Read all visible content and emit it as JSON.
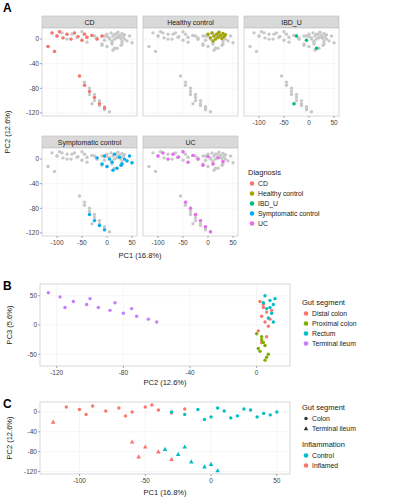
{
  "chart_data": [
    {
      "type": "facet_scatter",
      "label": "A",
      "x_label": "PC1 (16.8%)",
      "y_label": "PC2 (12.6%)",
      "legend_title": "Diagnosis",
      "legend": "right",
      "grid": true,
      "xlim": [
        -130,
        60
      ],
      "ylim": [
        -125,
        18
      ],
      "xticks": [
        -100,
        -50,
        0,
        50
      ],
      "yticks": [
        -120,
        -80,
        -40,
        0
      ],
      "series": [
        {
          "name": "CD",
          "color": "#f8766d",
          "marker": "circle",
          "x": [
            -110,
            -100,
            -95,
            -88,
            -80,
            -72,
            -65,
            -58,
            -50,
            -45,
            -40,
            -30,
            -20,
            -10,
            -118,
            -105,
            -55,
            -45,
            -35,
            -25,
            -15,
            -5
          ],
          "y": [
            10,
            5,
            12,
            2,
            8,
            0,
            10,
            4,
            -2,
            8,
            3,
            6,
            0,
            5,
            -12,
            -20,
            -60,
            -75,
            -85,
            -95,
            -105,
            -112
          ]
        },
        {
          "name": "Healthy control",
          "color": "#a3a500",
          "marker": "circle",
          "x": [
            0,
            5,
            8,
            12,
            15,
            18,
            20,
            22,
            25,
            28,
            30,
            32,
            35,
            10
          ],
          "y": [
            8,
            2,
            10,
            5,
            0,
            8,
            3,
            11,
            6,
            1,
            9,
            4,
            7,
            -3
          ]
        },
        {
          "name": "IBD_U",
          "color": "#00bf7d",
          "marker": "circle",
          "x": [
            -25,
            -5,
            15,
            -30
          ],
          "y": [
            5,
            -2,
            -15,
            -105
          ]
        },
        {
          "name": "Symptomatic control",
          "color": "#00b0f6",
          "marker": "circle",
          "x": [
            -20,
            -10,
            -5,
            0,
            5,
            10,
            15,
            20,
            25,
            30,
            35,
            40,
            45,
            50,
            12,
            28,
            -35,
            -25,
            -15,
            -5
          ],
          "y": [
            2,
            -8,
            5,
            -12,
            0,
            -5,
            8,
            -15,
            3,
            -8,
            0,
            -3,
            5,
            -6,
            -18,
            -10,
            -90,
            -100,
            -108,
            -115
          ]
        },
        {
          "name": "UC",
          "color": "#e76bf3",
          "marker": "circle",
          "x": [
            -100,
            -90,
            -80,
            -70,
            -60,
            -50,
            -40,
            -30,
            -20,
            -10,
            0,
            10,
            20,
            30,
            -45,
            -35,
            -25,
            -15,
            -5,
            5
          ],
          "y": [
            5,
            10,
            0,
            8,
            3,
            12,
            -5,
            6,
            0,
            -10,
            4,
            -8,
            2,
            -4,
            -70,
            -80,
            -90,
            -100,
            -110,
            -118
          ]
        }
      ]
    },
    {
      "type": "scatter",
      "label": "B",
      "x_label": "PC2 (12.6%)",
      "y_label": "PC3 (5.6%)",
      "legend_title": "Gut segment",
      "legend": "right",
      "grid": true,
      "xlim": [
        -130,
        20
      ],
      "ylim": [
        -70,
        70
      ],
      "xticks": [
        -120,
        -80,
        -40,
        0
      ],
      "yticks": [
        -50,
        0,
        50
      ],
      "series": [
        {
          "name": "Distal colon",
          "color": "#f8766d",
          "marker": "circle",
          "x": [
            2,
            4,
            6,
            3,
            8,
            5,
            7,
            1,
            9,
            4,
            6,
            3
          ],
          "y": [
            40,
            30,
            22,
            15,
            10,
            5,
            -2,
            -10,
            25,
            35,
            -20,
            -30
          ]
        },
        {
          "name": "Proximal colon",
          "color": "#7cae00",
          "marker": "circle",
          "x": [
            0,
            3,
            5,
            2,
            6,
            4,
            1,
            7,
            3,
            5
          ],
          "y": [
            -15,
            -25,
            -35,
            -45,
            -55,
            -30,
            -40,
            -50,
            -20,
            -60
          ]
        },
        {
          "name": "Rectum",
          "color": "#00bfc4",
          "marker": "circle",
          "x": [
            5,
            8,
            10,
            6,
            9,
            7,
            11,
            4,
            8,
            10
          ],
          "y": [
            50,
            42,
            35,
            28,
            20,
            12,
            45,
            38,
            30,
            5
          ]
        },
        {
          "name": "Terminal ileum",
          "color": "#c77cff",
          "marker": "circle",
          "x": [
            -125,
            -118,
            -110,
            -102,
            -95,
            -88,
            -80,
            -72,
            -65,
            -60,
            -100,
            -85,
            -115,
            -75
          ],
          "y": [
            55,
            48,
            40,
            35,
            30,
            25,
            20,
            15,
            10,
            5,
            45,
            38,
            30,
            28
          ]
        }
      ]
    },
    {
      "type": "scatter",
      "label": "C",
      "x_label": "PC1 (16.8%)",
      "y_label": "PC2 (12.6%)",
      "legend": "right",
      "grid": true,
      "xlim": [
        -130,
        60
      ],
      "ylim": [
        -125,
        20
      ],
      "xticks": [
        -100,
        -50,
        0,
        50
      ],
      "yticks": [
        -120,
        -80,
        -40,
        0
      ],
      "legends": [
        {
          "title": "Gut segment",
          "entries": [
            {
              "name": "Colon",
              "marker": "circle"
            },
            {
              "name": "Terminal ileum",
              "marker": "triangle"
            }
          ]
        },
        {
          "title": "Inflammation",
          "entries": [
            {
              "name": "Control",
              "color": "#00bfc4"
            },
            {
              "name": "Inflamed",
              "color": "#f8766d"
            }
          ]
        }
      ],
      "series": [
        {
          "color": "#f8766d",
          "marker": "circle",
          "x": [
            -110,
            -100,
            -90,
            -80,
            -70,
            -60,
            -50,
            -40,
            -30,
            -20,
            -95,
            -65,
            -45
          ],
          "y": [
            10,
            5,
            12,
            2,
            8,
            0,
            10,
            4,
            -2,
            6,
            -5,
            -8,
            14
          ]
        },
        {
          "color": "#00bfc4",
          "marker": "circle",
          "x": [
            -30,
            -20,
            -10,
            0,
            10,
            20,
            30,
            40,
            50,
            -5,
            15,
            25,
            35,
            45,
            5
          ],
          "y": [
            0,
            -5,
            5,
            -10,
            2,
            -8,
            4,
            -3,
            0,
            -15,
            -12,
            6,
            -10,
            -6,
            8
          ]
        },
        {
          "color": "#f8766d",
          "marker": "triangle",
          "x": [
            -60,
            -50,
            -40,
            -55,
            -120,
            -30
          ],
          "y": [
            -60,
            -70,
            -80,
            -90,
            -20,
            -95
          ]
        },
        {
          "color": "#00bfc4",
          "marker": "triangle",
          "x": [
            -35,
            -25,
            -15,
            -5,
            5,
            -20,
            0
          ],
          "y": [
            -75,
            -85,
            -100,
            -110,
            -118,
            -70,
            -105
          ]
        }
      ]
    }
  ]
}
